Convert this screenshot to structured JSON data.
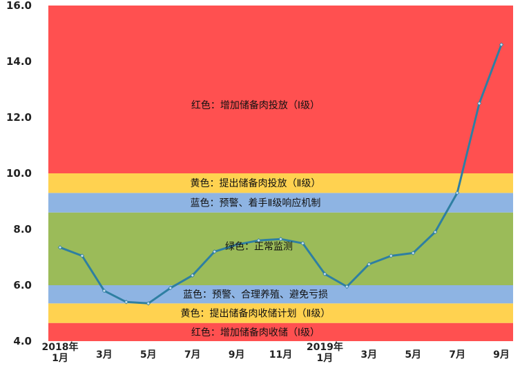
{
  "chart_data": {
    "type": "line",
    "title": "",
    "xlabel": "",
    "ylabel": "",
    "ylim": [
      4.0,
      16.0
    ],
    "yticks": [
      "4.0",
      "6.0",
      "8.0",
      "10.0",
      "12.0",
      "14.0",
      "16.0"
    ],
    "grid": false,
    "legend": "none",
    "x": [
      "2018-01",
      "2018-02",
      "2018-03",
      "2018-04",
      "2018-05",
      "2018-06",
      "2018-07",
      "2018-08",
      "2018-09",
      "2018-10",
      "2018-11",
      "2018-12",
      "2019-01",
      "2019-02",
      "2019-03",
      "2019-04",
      "2019-05",
      "2019-06",
      "2019-07",
      "2019-08",
      "2019-09"
    ],
    "x_tick_labels": [
      {
        "index": 0,
        "lines": [
          "2018年",
          "1月"
        ]
      },
      {
        "index": 2,
        "lines": [
          "3月"
        ]
      },
      {
        "index": 4,
        "lines": [
          "5月"
        ]
      },
      {
        "index": 6,
        "lines": [
          "7月"
        ]
      },
      {
        "index": 8,
        "lines": [
          "9月"
        ]
      },
      {
        "index": 10,
        "lines": [
          "11月"
        ]
      },
      {
        "index": 12,
        "lines": [
          "2019年",
          "1月"
        ]
      },
      {
        "index": 14,
        "lines": [
          "3月"
        ]
      },
      {
        "index": 16,
        "lines": [
          "5月"
        ]
      },
      {
        "index": 18,
        "lines": [
          "7月"
        ]
      },
      {
        "index": 20,
        "lines": [
          "9月"
        ]
      }
    ],
    "series": [
      {
        "values": [
          7.35,
          7.05,
          5.8,
          5.4,
          5.35,
          5.9,
          6.35,
          7.2,
          7.45,
          7.6,
          7.65,
          7.5,
          6.4,
          5.95,
          6.75,
          7.05,
          7.15,
          7.9,
          9.3,
          12.5,
          14.6
        ]
      }
    ],
    "bands": [
      {
        "from": 4.0,
        "to": 4.65,
        "label": "红色：增加储备肉收储（Ⅰ级）",
        "color": "#ff5050"
      },
      {
        "from": 4.65,
        "to": 5.35,
        "label": "黄色：提出储备肉收储计划（Ⅱ级）",
        "color": "#ffd250"
      },
      {
        "from": 5.35,
        "to": 6.0,
        "label": "蓝色：预警、合理养殖、避免亏损",
        "color": "#8eb4e3"
      },
      {
        "from": 6.0,
        "to": 8.6,
        "label": "绿色：正常监测",
        "color": "#9bbb59"
      },
      {
        "from": 8.6,
        "to": 9.3,
        "label": "蓝色：预警、着手Ⅱ级响应机制",
        "color": "#8eb4e3"
      },
      {
        "from": 9.3,
        "to": 10.0,
        "label": "黄色：提出储备肉投放（Ⅱ级）",
        "color": "#ffd250"
      },
      {
        "from": 10.0,
        "to": 16.0,
        "label": "红色：增加储备肉投放（Ⅰ级）",
        "color": "#ff5050"
      }
    ],
    "colors": {
      "line": "#2e7fa2",
      "marker_fill": "#c9dff0",
      "marker_stroke": "#2e7fa2",
      "green_band": "#9bbb59"
    }
  }
}
